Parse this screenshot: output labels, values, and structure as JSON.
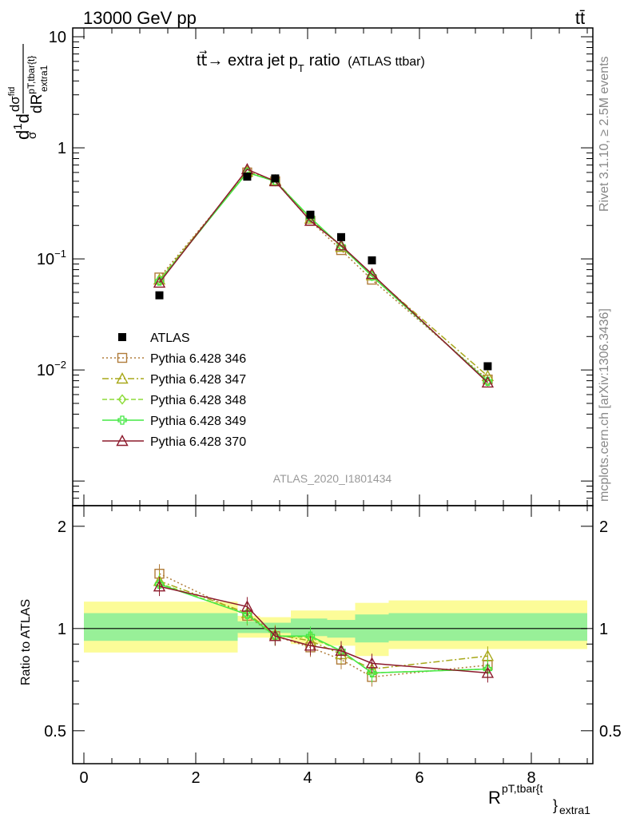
{
  "header": {
    "left": "13000 GeV pp",
    "right": "tt̄"
  },
  "side": {
    "rivet": "Rivet 3.1.10, ≥ 2.5M events",
    "mcplots": "mcplots.cern.ch [arXiv:1306.3436]"
  },
  "chart_data": {
    "type": "line",
    "title": "tt̄→ extra jet p_T ratio",
    "title_parts": {
      "main": "tt⃗→ extra jet p",
      "sub": "T",
      "tail": "ratio",
      "small": "(ATLAS ttbar)"
    },
    "analysis_label": "ATLAS_2020_I1801434",
    "ylabel_parts": {
      "a": "d",
      "b": "1",
      "c": "σ",
      "d": "d",
      "e": "dσ",
      "esup": "fid",
      "f": "dR",
      "fsup": "pT,tbar{t}",
      "fsub": "extra1"
    },
    "xlabel_parts": {
      "main": "R",
      "sup": "pT,tbar{t",
      "brace": "}",
      "sub": "extra1"
    },
    "ratio_ylabel": "Ratio to ATLAS",
    "log_y": true,
    "ylim_main": [
      0.0006,
      12
    ],
    "xlim": [
      -0.2,
      9.1
    ],
    "ylim_ratio": [
      0.4,
      2.3
    ],
    "main_ytick_labels": [
      {
        "v": 10,
        "base": "10",
        "exp": ""
      },
      {
        "v": 1,
        "base": "1",
        "exp": ""
      },
      {
        "v": 0.1,
        "base": "10",
        "exp": "−1"
      },
      {
        "v": 0.01,
        "base": "10",
        "exp": "−2"
      }
    ],
    "x_ticks": [
      "0",
      "2",
      "4",
      "6",
      "8"
    ],
    "ratio_ticks": [
      "2",
      "1",
      "0.5"
    ],
    "bins_x": [
      1.35,
      2.92,
      3.42,
      4.05,
      4.6,
      5.15,
      7.22
    ],
    "data": {
      "name": "ATLAS",
      "y": [
        0.047,
        0.55,
        0.53,
        0.25,
        0.157,
        0.097,
        0.0108
      ]
    },
    "series": [
      {
        "name": "Pythia 6.428 346",
        "color": "#b07c3a",
        "marker": "square-open",
        "dash": "2,3",
        "y": [
          0.068,
          0.6,
          0.5,
          0.22,
          0.12,
          0.065,
          0.0082
        ],
        "ratio": [
          1.45,
          1.09,
          0.95,
          0.88,
          0.81,
          0.72,
          0.78
        ]
      },
      {
        "name": "Pythia 6.428 347",
        "color": "#a8a81a",
        "marker": "triangle-open",
        "dash": "8,3,2,3",
        "y": [
          0.065,
          0.61,
          0.51,
          0.23,
          0.128,
          0.071,
          0.0088
        ],
        "ratio": [
          1.38,
          1.11,
          0.96,
          0.92,
          0.84,
          0.76,
          0.83
        ]
      },
      {
        "name": "Pythia 6.428 348",
        "color": "#8edc3a",
        "marker": "diamond-open",
        "dash": "6,3",
        "y": [
          0.064,
          0.6,
          0.5,
          0.235,
          0.13,
          0.07,
          0.0079
        ],
        "ratio": [
          1.36,
          1.1,
          0.95,
          0.94,
          0.86,
          0.74,
          0.76
        ]
      },
      {
        "name": "Pythia 6.428 349",
        "color": "#44e844",
        "marker": "cross-open",
        "dash": "",
        "y": [
          0.063,
          0.6,
          0.5,
          0.235,
          0.13,
          0.07,
          0.0079
        ],
        "ratio": [
          1.35,
          1.1,
          0.95,
          0.95,
          0.86,
          0.74,
          0.76
        ]
      },
      {
        "name": "Pythia 6.428 370",
        "color": "#8c1a2c",
        "marker": "triangle-open",
        "dash": "",
        "y": [
          0.061,
          0.64,
          0.5,
          0.22,
          0.132,
          0.073,
          0.0077
        ],
        "ratio": [
          1.33,
          1.16,
          0.95,
          0.89,
          0.86,
          0.79,
          0.74
        ]
      }
    ],
    "bands": [
      {
        "x0": 0.0,
        "x1": 2.75,
        "y1lo": 0.92,
        "y1hi": 1.11,
        "y2lo": 0.85,
        "y2hi": 1.2
      },
      {
        "x0": 2.75,
        "x1": 3.15,
        "y1lo": 0.97,
        "y1hi": 1.05,
        "y2lo": 0.94,
        "y2hi": 1.09
      },
      {
        "x0": 3.15,
        "x1": 3.7,
        "y1lo": 0.97,
        "y1hi": 1.04,
        "y2lo": 0.94,
        "y2hi": 1.08
      },
      {
        "x0": 3.7,
        "x1": 4.35,
        "y1lo": 0.95,
        "y1hi": 1.07,
        "y2lo": 0.9,
        "y2hi": 1.13
      },
      {
        "x0": 4.35,
        "x1": 4.85,
        "y1lo": 0.94,
        "y1hi": 1.06,
        "y2lo": 0.89,
        "y2hi": 1.13
      },
      {
        "x0": 4.85,
        "x1": 5.45,
        "y1lo": 0.91,
        "y1hi": 1.1,
        "y2lo": 0.83,
        "y2hi": 1.19
      },
      {
        "x0": 5.45,
        "x1": 9.0,
        "y1lo": 0.92,
        "y1hi": 1.11,
        "y2lo": 0.87,
        "y2hi": 1.21
      }
    ],
    "colors": {
      "band_inner": "#98f098",
      "band_outer": "#fcfc98",
      "data": "#000000"
    }
  }
}
